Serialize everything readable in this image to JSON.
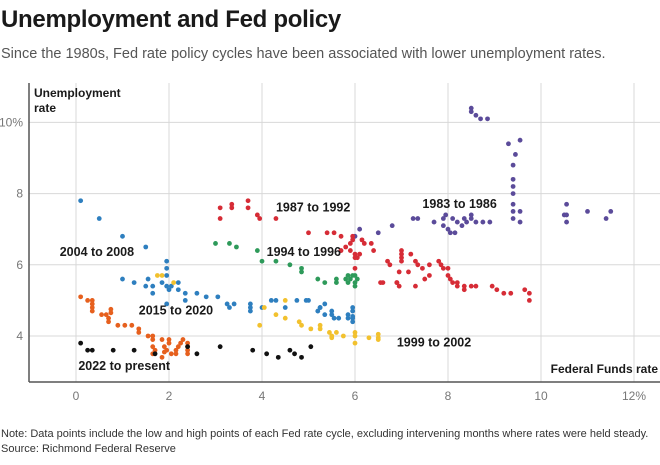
{
  "header": {
    "title": "Unemployment and Fed policy",
    "subtitle": "Since the 1980s, Fed rate policy cycles have been associated with lower unemployment rates."
  },
  "footer": {
    "note": "Note: Data points include the low and high points of each Fed rate cycle, excluding intervening months where rates were held steady.",
    "source": "Source: Richmond Federal Reserve"
  },
  "chart_data": {
    "type": "scatter",
    "title": "Unemployment and Fed policy",
    "xlabel": "Federal Funds rate",
    "ylabel": "Unemployment rate",
    "xlim": [
      -0.8,
      12.5
    ],
    "ylim": [
      2.7,
      11.3
    ],
    "xticks": [
      0,
      2,
      4,
      6,
      8,
      10,
      12
    ],
    "xtick_labels": [
      "0",
      "2",
      "4",
      "6",
      "8",
      "10",
      "12%"
    ],
    "yticks": [
      4,
      6,
      8,
      10
    ],
    "ytick_labels": [
      "4",
      "6",
      "8",
      "10%"
    ],
    "grid": true,
    "series": [
      {
        "name": "1983 to 1986",
        "color": "#5b4b9a",
        "points": [
          [
            8.5,
            10.4
          ],
          [
            8.5,
            10.3
          ],
          [
            8.6,
            10.2
          ],
          [
            8.7,
            10.1
          ],
          [
            8.85,
            10.1
          ],
          [
            9.3,
            9.4
          ],
          [
            9.55,
            9.5
          ],
          [
            9.45,
            9.1
          ],
          [
            9.4,
            8.8
          ],
          [
            9.4,
            8.4
          ],
          [
            9.4,
            8.2
          ],
          [
            9.4,
            8.0
          ],
          [
            9.4,
            7.7
          ],
          [
            9.4,
            7.5
          ],
          [
            9.55,
            7.5
          ],
          [
            9.55,
            7.2
          ],
          [
            10.5,
            7.4
          ],
          [
            10.55,
            7.4
          ],
          [
            10.55,
            7.2
          ],
          [
            10.55,
            7.7
          ],
          [
            11.0,
            7.5
          ],
          [
            11.4,
            7.3
          ],
          [
            11.5,
            7.5
          ],
          [
            6.0,
            6.8
          ],
          [
            6.5,
            6.9
          ],
          [
            6.1,
            7.0
          ],
          [
            6.8,
            7.1
          ],
          [
            7.25,
            7.3
          ],
          [
            7.35,
            7.3
          ],
          [
            7.7,
            7.2
          ],
          [
            7.9,
            7.3
          ],
          [
            7.9,
            7.1
          ],
          [
            8.0,
            7.0
          ],
          [
            8.05,
            6.9
          ],
          [
            8.15,
            6.9
          ],
          [
            8.2,
            7.2
          ],
          [
            8.5,
            7.4
          ],
          [
            8.4,
            7.2
          ],
          [
            8.3,
            7.1
          ],
          [
            8.6,
            7.2
          ],
          [
            8.75,
            7.2
          ],
          [
            8.9,
            7.2
          ],
          [
            8.35,
            7.3
          ],
          [
            7.95,
            7.4
          ],
          [
            8.1,
            7.3
          ],
          [
            8.5,
            7.3
          ],
          [
            9.4,
            7.3
          ]
        ]
      },
      {
        "name": "1987 to 1992",
        "color": "#d62c36",
        "points": [
          [
            3.1,
            7.3
          ],
          [
            3.1,
            7.6
          ],
          [
            3.35,
            7.6
          ],
          [
            3.35,
            7.7
          ],
          [
            3.7,
            7.8
          ],
          [
            3.7,
            7.6
          ],
          [
            3.9,
            7.4
          ],
          [
            3.95,
            7.3
          ],
          [
            4.3,
            7.3
          ],
          [
            5.0,
            6.9
          ],
          [
            5.4,
            6.9
          ],
          [
            5.55,
            6.9
          ],
          [
            5.7,
            6.8
          ],
          [
            5.95,
            6.8
          ],
          [
            5.95,
            6.7
          ],
          [
            6.15,
            6.7
          ],
          [
            6.2,
            6.6
          ],
          [
            6.35,
            6.6
          ],
          [
            5.9,
            6.6
          ],
          [
            5.8,
            6.5
          ],
          [
            5.9,
            6.4
          ],
          [
            6.0,
            6.3
          ],
          [
            6.0,
            6.2
          ],
          [
            6.4,
            6.4
          ],
          [
            7.0,
            6.4
          ],
          [
            7.2,
            6.3
          ],
          [
            7.0,
            6.2
          ],
          [
            7.0,
            6.1
          ],
          [
            7.3,
            6.1
          ],
          [
            7.35,
            6.0
          ],
          [
            7.8,
            6.1
          ],
          [
            7.85,
            6.0
          ],
          [
            7.9,
            5.9
          ],
          [
            8.0,
            5.9
          ],
          [
            8.0,
            5.7
          ],
          [
            8.05,
            5.6
          ],
          [
            8.1,
            5.5
          ],
          [
            8.2,
            5.5
          ],
          [
            8.35,
            5.4
          ],
          [
            8.35,
            5.3
          ],
          [
            8.5,
            5.4
          ],
          [
            8.6,
            5.4
          ],
          [
            8.95,
            5.4
          ],
          [
            9.05,
            5.3
          ],
          [
            9.2,
            5.2
          ],
          [
            9.35,
            5.2
          ],
          [
            9.65,
            5.3
          ],
          [
            9.75,
            5.2
          ],
          [
            9.75,
            5.0
          ],
          [
            6.95,
            5.4
          ],
          [
            6.9,
            5.5
          ],
          [
            7.3,
            5.4
          ],
          [
            7.5,
            5.6
          ],
          [
            7.6,
            5.7
          ],
          [
            6.9,
            5.5
          ],
          [
            6.55,
            5.5
          ],
          [
            6.6,
            5.5
          ],
          [
            6.95,
            5.8
          ],
          [
            7.15,
            5.8
          ],
          [
            7.45,
            5.9
          ],
          [
            7.6,
            6.0
          ],
          [
            6.7,
            6.1
          ],
          [
            6.75,
            6.0
          ],
          [
            7.0,
            6.3
          ],
          [
            8.2,
            5.4
          ],
          [
            6.0,
            5.9
          ],
          [
            6.05,
            6.2
          ],
          [
            6.1,
            6.3
          ],
          [
            5.7,
            6.4
          ]
        ]
      },
      {
        "name": "1994 to 1996",
        "color": "#2e9a5a",
        "points": [
          [
            3.0,
            6.6
          ],
          [
            3.3,
            6.6
          ],
          [
            3.45,
            6.5
          ],
          [
            3.9,
            6.4
          ],
          [
            4.0,
            6.1
          ],
          [
            4.3,
            6.1
          ],
          [
            4.6,
            6.0
          ],
          [
            4.85,
            5.9
          ],
          [
            4.85,
            5.8
          ],
          [
            5.2,
            5.6
          ],
          [
            5.35,
            5.5
          ],
          [
            5.6,
            5.6
          ],
          [
            5.6,
            5.5
          ],
          [
            5.8,
            5.6
          ],
          [
            5.85,
            5.5
          ],
          [
            5.85,
            5.7
          ],
          [
            5.95,
            5.7
          ],
          [
            6.0,
            5.7
          ],
          [
            6.0,
            5.5
          ],
          [
            6.0,
            5.4
          ],
          [
            6.05,
            5.6
          ],
          [
            5.9,
            5.6
          ]
        ]
      },
      {
        "name": "2004 to 2008",
        "color": "#2e7fbf",
        "points": [
          [
            0.1,
            7.8
          ],
          [
            0.5,
            7.3
          ],
          [
            1.0,
            6.8
          ],
          [
            1.5,
            6.5
          ],
          [
            1.95,
            6.1
          ],
          [
            1.95,
            5.9
          ],
          [
            1.95,
            5.7
          ],
          [
            1.0,
            5.6
          ],
          [
            1.25,
            5.5
          ],
          [
            1.5,
            5.4
          ],
          [
            1.65,
            5.4
          ],
          [
            1.85,
            5.5
          ],
          [
            1.95,
            5.4
          ],
          [
            2.05,
            5.4
          ],
          [
            2.0,
            5.3
          ],
          [
            2.2,
            5.3
          ],
          [
            2.35,
            5.2
          ],
          [
            2.35,
            5.0
          ],
          [
            1.95,
            4.9
          ],
          [
            2.6,
            5.2
          ],
          [
            2.8,
            5.1
          ],
          [
            3.05,
            5.1
          ],
          [
            3.25,
            4.9
          ],
          [
            3.3,
            4.8
          ],
          [
            3.4,
            4.9
          ],
          [
            3.75,
            4.9
          ],
          [
            3.75,
            4.8
          ],
          [
            3.75,
            4.7
          ],
          [
            4.0,
            4.8
          ],
          [
            4.2,
            5.0
          ],
          [
            4.3,
            5.0
          ],
          [
            4.5,
            4.8
          ],
          [
            4.75,
            5.0
          ],
          [
            4.95,
            5.0
          ],
          [
            5.0,
            5.0
          ],
          [
            5.25,
            4.8
          ],
          [
            5.35,
            4.9
          ],
          [
            5.35,
            4.6
          ],
          [
            5.5,
            4.7
          ],
          [
            5.5,
            4.6
          ],
          [
            5.55,
            4.5
          ],
          [
            5.65,
            4.5
          ],
          [
            5.85,
            4.5
          ],
          [
            5.85,
            4.6
          ],
          [
            5.95,
            4.5
          ],
          [
            5.95,
            4.7
          ],
          [
            5.95,
            4.8
          ],
          [
            5.95,
            4.4
          ],
          [
            5.25,
            4.8
          ],
          [
            5.2,
            4.7
          ],
          [
            1.55,
            5.6
          ],
          [
            1.65,
            5.2
          ],
          [
            2.2,
            5.5
          ],
          [
            5.95,
            4.55
          ]
        ]
      },
      {
        "name": "1999 to 2002",
        "color": "#f2c12e",
        "points": [
          [
            1.75,
            5.7
          ],
          [
            1.85,
            5.7
          ],
          [
            2.1,
            5.5
          ],
          [
            4.5,
            5.0
          ],
          [
            4.05,
            4.8
          ],
          [
            4.3,
            4.6
          ],
          [
            4.5,
            4.5
          ],
          [
            3.95,
            4.3
          ],
          [
            4.8,
            4.4
          ],
          [
            4.85,
            4.3
          ],
          [
            5.05,
            4.2
          ],
          [
            5.25,
            4.2
          ],
          [
            5.45,
            4.1
          ],
          [
            5.5,
            4.0
          ],
          [
            5.5,
            3.95
          ],
          [
            5.6,
            4.1
          ],
          [
            5.75,
            4.0
          ],
          [
            6.0,
            4.1
          ],
          [
            6.0,
            3.8
          ],
          [
            6.3,
            3.95
          ],
          [
            6.5,
            4.05
          ],
          [
            6.5,
            3.95
          ],
          [
            6.5,
            3.9
          ],
          [
            5.25,
            4.3
          ],
          [
            6.0,
            4.0
          ]
        ]
      },
      {
        "name": "2015 to 2020",
        "color": "#e6601e",
        "points": [
          [
            0.1,
            5.1
          ],
          [
            0.25,
            5.0
          ],
          [
            0.35,
            5.0
          ],
          [
            0.35,
            4.9
          ],
          [
            0.35,
            4.8
          ],
          [
            0.35,
            4.7
          ],
          [
            0.55,
            4.6
          ],
          [
            0.65,
            4.6
          ],
          [
            0.7,
            4.5
          ],
          [
            0.7,
            4.4
          ],
          [
            0.9,
            4.3
          ],
          [
            1.05,
            4.3
          ],
          [
            1.2,
            4.3
          ],
          [
            1.35,
            4.2
          ],
          [
            1.35,
            4.1
          ],
          [
            1.55,
            4.0
          ],
          [
            1.65,
            4.0
          ],
          [
            1.65,
            3.9
          ],
          [
            1.85,
            3.9
          ],
          [
            2.0,
            3.9
          ],
          [
            2.0,
            3.8
          ],
          [
            1.7,
            3.6
          ],
          [
            1.65,
            3.5
          ],
          [
            1.9,
            3.7
          ],
          [
            1.95,
            3.6
          ],
          [
            2.05,
            3.5
          ],
          [
            2.15,
            3.5
          ],
          [
            2.2,
            3.7
          ],
          [
            2.25,
            3.8
          ],
          [
            2.4,
            3.7
          ],
          [
            2.4,
            3.6
          ],
          [
            2.4,
            3.5
          ],
          [
            2.4,
            3.8
          ],
          [
            2.3,
            3.9
          ],
          [
            1.85,
            3.4
          ],
          [
            1.65,
            3.7
          ],
          [
            2.15,
            3.6
          ],
          [
            1.9,
            3.55
          ],
          [
            0.75,
            4.65
          ],
          [
            0.75,
            4.75
          ]
        ]
      },
      {
        "name": "2022 to present",
        "color": "#111111",
        "points": [
          [
            0.1,
            3.8
          ],
          [
            0.25,
            3.6
          ],
          [
            0.35,
            3.6
          ],
          [
            0.8,
            3.6
          ],
          [
            1.25,
            3.6
          ],
          [
            1.7,
            3.5
          ],
          [
            2.4,
            3.7
          ],
          [
            2.6,
            3.5
          ],
          [
            3.1,
            3.7
          ],
          [
            3.8,
            3.6
          ],
          [
            4.1,
            3.5
          ],
          [
            4.35,
            3.4
          ],
          [
            4.6,
            3.6
          ],
          [
            4.7,
            3.5
          ],
          [
            4.85,
            3.4
          ],
          [
            5.05,
            3.7
          ]
        ]
      }
    ],
    "annotations": [
      {
        "text": "1983 to 1986",
        "x": 7.45,
        "y": 7.6
      },
      {
        "text": "1987 to 1992",
        "x": 4.3,
        "y": 7.5
      },
      {
        "text": "1994 to 1996",
        "x": 4.1,
        "y": 6.25
      },
      {
        "text": "2004 to 2008",
        "x": -0.35,
        "y": 6.25
      },
      {
        "text": "2015 to 2020",
        "x": 1.35,
        "y": 4.6
      },
      {
        "text": "1999 to 2002",
        "x": 6.9,
        "y": 3.7
      },
      {
        "text": "2022 to present",
        "x": 0.05,
        "y": 3.05
      }
    ]
  }
}
